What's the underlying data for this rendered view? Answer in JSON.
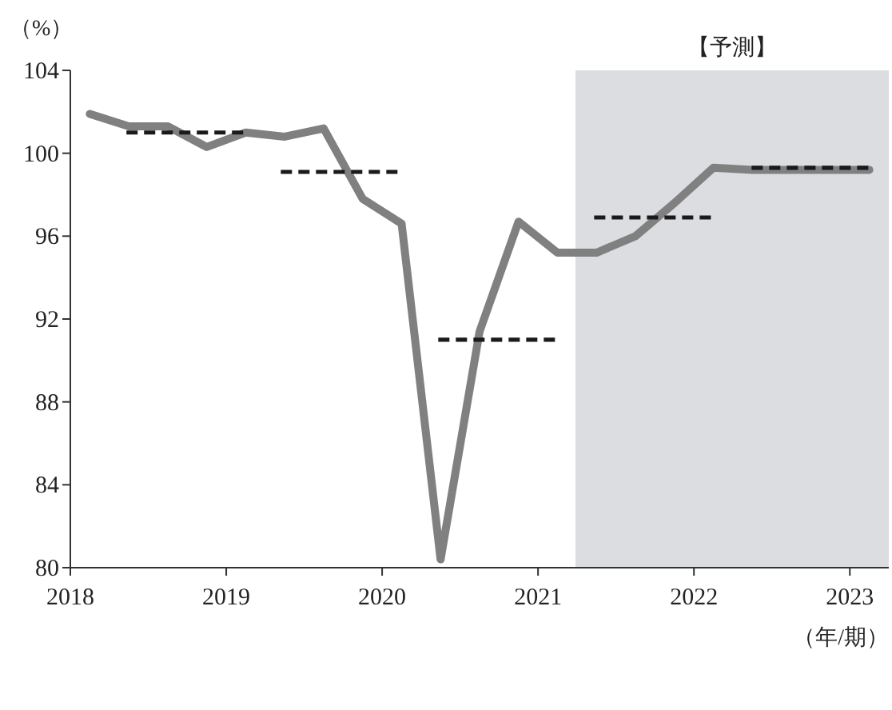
{
  "chart_data": {
    "type": "line",
    "ylabel": "（%）",
    "xlabel": "（年/期）",
    "xlim": [
      2018,
      2023.25
    ],
    "ylim": [
      80,
      104
    ],
    "xticks": [
      2018,
      2019,
      2020,
      2021,
      2022,
      2023
    ],
    "yticks": [
      80,
      84,
      88,
      92,
      96,
      100,
      104
    ],
    "bands": [
      {
        "axis": "x",
        "from": 2021.24,
        "to": 2023.25,
        "label": "【予測】",
        "color": "#dcdde0"
      }
    ],
    "series": [
      {
        "color": "#808080",
        "line_style": "solid",
        "x": [
          2018.125,
          2018.375,
          2018.625,
          2018.875,
          2019.125,
          2019.375,
          2019.625,
          2019.875,
          2020.125,
          2020.375,
          2020.625,
          2020.875,
          2021.125,
          2021.375,
          2021.625,
          2021.875,
          2022.125,
          2022.375,
          2022.625,
          2022.875,
          2023.125
        ],
        "values": [
          101.9,
          101.3,
          101.3,
          100.3,
          101.0,
          100.8,
          101.2,
          97.8,
          96.6,
          80.4,
          91.4,
          96.7,
          95.2,
          95.2,
          96.0,
          97.6,
          99.3,
          99.2,
          99.2,
          99.2,
          99.2
        ]
      },
      {
        "color": "#1a1a1a",
        "line_style": "dashed",
        "x": [
          2018.36,
          2019.14
        ],
        "values": [
          101.0,
          101.0
        ]
      },
      {
        "color": "#1a1a1a",
        "line_style": "dashed",
        "x": [
          2019.35,
          2020.13
        ],
        "values": [
          99.1,
          99.1
        ]
      },
      {
        "color": "#1a1a1a",
        "line_style": "dashed",
        "x": [
          2020.36,
          2021.13
        ],
        "values": [
          91.0,
          91.0
        ]
      },
      {
        "color": "#1a1a1a",
        "line_style": "dashed",
        "x": [
          2021.36,
          2022.14
        ],
        "values": [
          96.9,
          96.9
        ]
      },
      {
        "color": "#1a1a1a",
        "line_style": "dashed",
        "x": [
          2022.37,
          2023.14
        ],
        "values": [
          99.3,
          99.3
        ]
      }
    ]
  }
}
